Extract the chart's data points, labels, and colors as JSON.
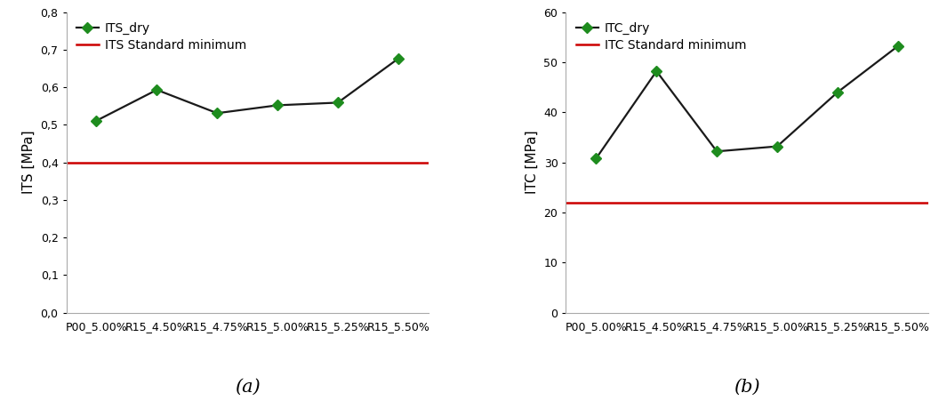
{
  "categories": [
    "P00_5.00%",
    "R15_4.50%",
    "R15_4.75%",
    "R15_5.00%",
    "R15_5.25%",
    "R15_5.50%"
  ],
  "its_values": [
    0.511,
    0.593,
    0.531,
    0.552,
    0.559,
    0.676
  ],
  "its_standard_min": 0.4,
  "its_ylabel": "ITS [MPa]",
  "its_ylim": [
    0,
    0.8
  ],
  "its_yticks": [
    0,
    0.1,
    0.2,
    0.3,
    0.4,
    0.5,
    0.6,
    0.7,
    0.8
  ],
  "its_legend_line": "ITS_dry",
  "its_legend_standard": "ITS Standard minimum",
  "its_label": "(a)",
  "itc_values": [
    30.8,
    48.2,
    32.2,
    33.2,
    44.0,
    53.2
  ],
  "itc_standard_min": 22.0,
  "itc_ylabel": "ITC [MPa]",
  "itc_ylim": [
    0,
    60
  ],
  "itc_yticks": [
    0,
    10,
    20,
    30,
    40,
    50,
    60
  ],
  "itc_legend_line": "ITC_dry",
  "itc_legend_standard": "ITC Standard minimum",
  "itc_label": "(b)",
  "marker": "D",
  "marker_size": 6,
  "line_color_green": "#1e8c1e",
  "line_color_black": "#1a1a1a",
  "standard_color": "#cc0000",
  "standard_linewidth": 1.8,
  "data_linewidth": 1.6,
  "background_color": "#ffffff",
  "spine_color": "#aaaaaa",
  "fontsize_ylabel": 11,
  "fontsize_tick": 9,
  "fontsize_legend": 10,
  "fontsize_caption": 15
}
